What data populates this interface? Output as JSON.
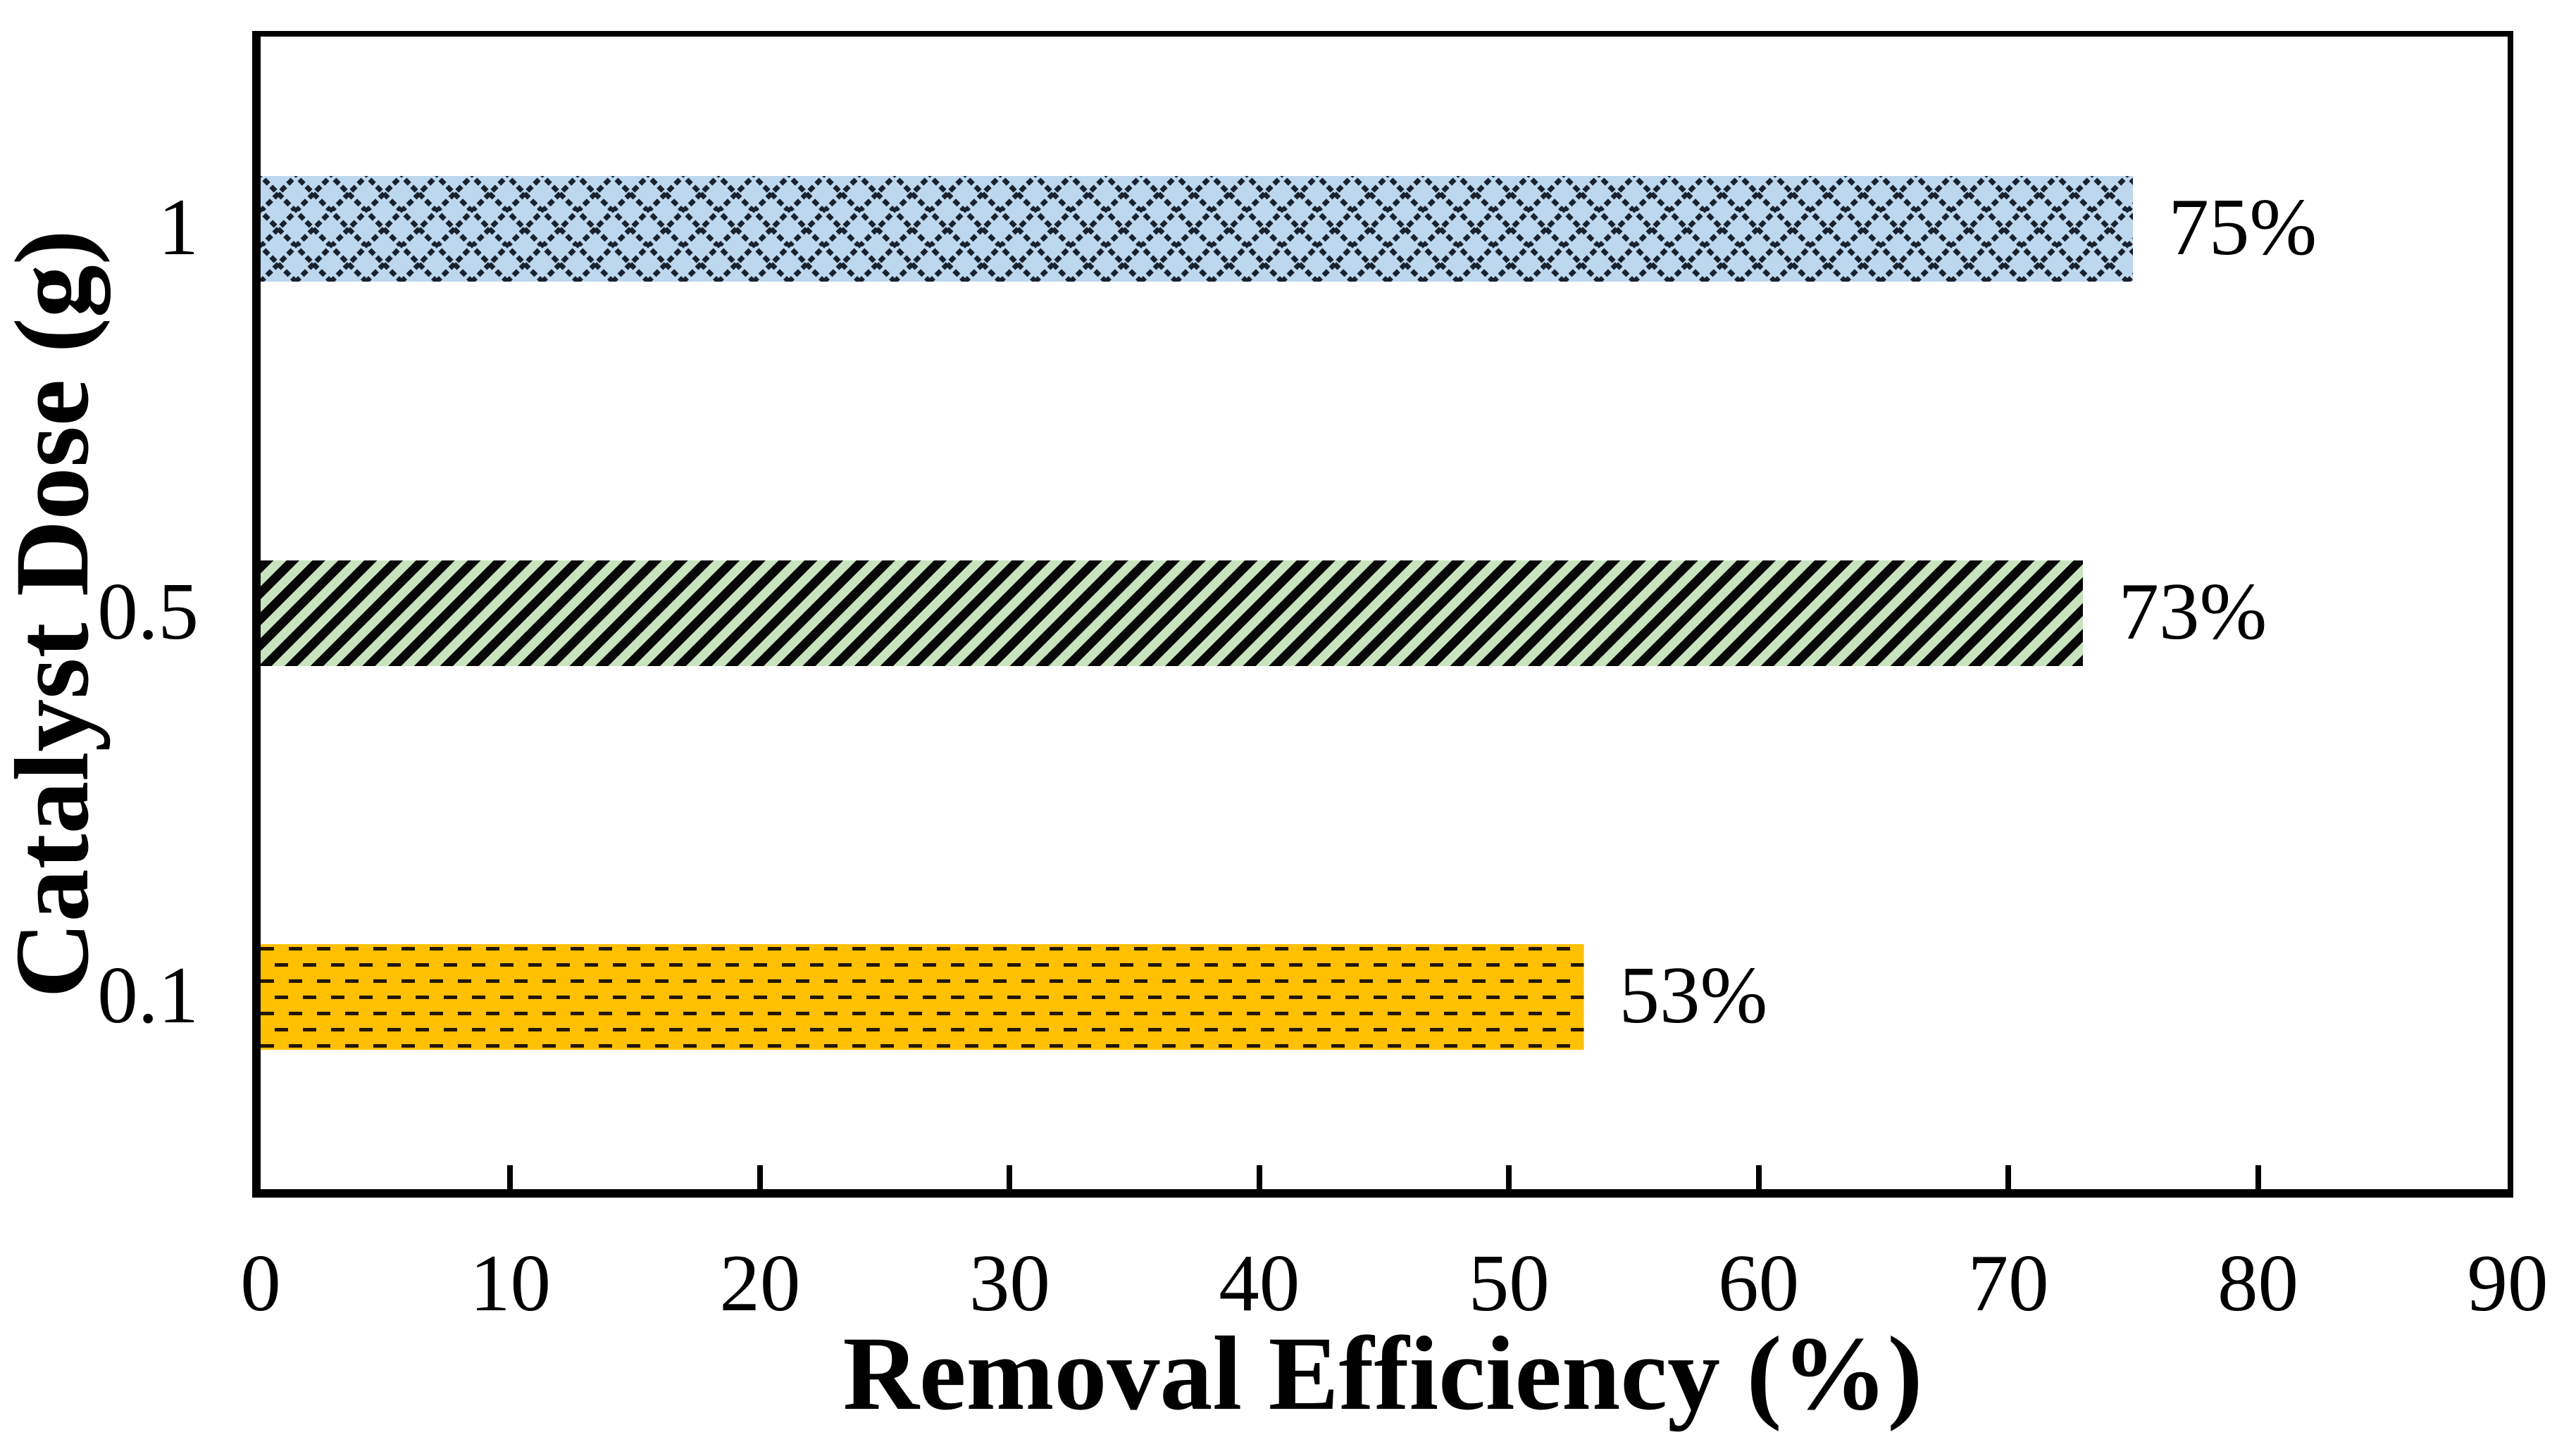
{
  "figure": {
    "background": "#ffffff",
    "axis_color": "#000000",
    "text_color": "#000000"
  },
  "chart_data": {
    "type": "bar",
    "orientation": "horizontal",
    "title": "",
    "xlabel": "Removal Efficiency (%)",
    "ylabel": "Catalyst Dose (g)",
    "xlim": [
      0,
      90
    ],
    "xticks": [
      0,
      10,
      20,
      30,
      40,
      50,
      60,
      70,
      80,
      90
    ],
    "grid": false,
    "legend": false,
    "categories": [
      "1",
      "0.5",
      "0.1"
    ],
    "values": [
      75,
      73,
      53
    ],
    "series": [
      {
        "category": "1",
        "value": 75,
        "label": "75%",
        "fill": "#bdd7ee",
        "pattern": "diagonal-crosshatch",
        "pattern_color": "#18222e"
      },
      {
        "category": "0.5",
        "value": 73,
        "label": "73%",
        "fill": "#c8e3bd",
        "pattern": "diagonal-stripes",
        "pattern_color": "#070707"
      },
      {
        "category": "0.1",
        "value": 53,
        "label": "53%",
        "fill": "#ffc002",
        "pattern": "horizontal-dashes",
        "pattern_color": "#221604"
      }
    ]
  }
}
